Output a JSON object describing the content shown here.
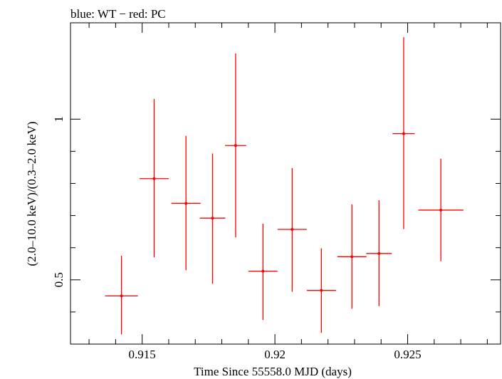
{
  "chart_data": {
    "type": "scatter",
    "title": "blue: WT − red: PC",
    "xlabel": "Time Since 55558.0 MJD (days)",
    "ylabel": "(2.0–10.0 keV)/(0.3–2.0 keV)",
    "xlim": [
      0.9123,
      0.9285
    ],
    "ylim": [
      0.3,
      1.3
    ],
    "x_ticks": [
      0.915,
      0.92,
      0.925
    ],
    "x_tick_labels": [
      "0.915",
      "0.92",
      "0.925"
    ],
    "y_ticks": [
      0.5,
      1
    ],
    "y_tick_labels": [
      "0.5",
      "1"
    ],
    "grid": false,
    "series": [
      {
        "name": "PC",
        "color": "#ff0000",
        "points": [
          {
            "x": 0.91422,
            "xerr": 0.00062,
            "y": 0.45,
            "ylo": 0.33,
            "yhi": 0.575
          },
          {
            "x": 0.91545,
            "xerr": 0.00055,
            "y": 0.815,
            "ylo": 0.57,
            "yhi": 1.063
          },
          {
            "x": 0.91665,
            "xerr": 0.00055,
            "y": 0.738,
            "ylo": 0.53,
            "yhi": 0.948
          },
          {
            "x": 0.91765,
            "xerr": 0.00048,
            "y": 0.692,
            "ylo": 0.488,
            "yhi": 0.893
          },
          {
            "x": 0.91852,
            "xerr": 0.0004,
            "y": 0.918,
            "ylo": 0.632,
            "yhi": 1.205
          },
          {
            "x": 0.91955,
            "xerr": 0.00055,
            "y": 0.527,
            "ylo": 0.375,
            "yhi": 0.675
          },
          {
            "x": 0.92065,
            "xerr": 0.00055,
            "y": 0.657,
            "ylo": 0.463,
            "yhi": 0.848
          },
          {
            "x": 0.92175,
            "xerr": 0.00055,
            "y": 0.467,
            "ylo": 0.335,
            "yhi": 0.598
          },
          {
            "x": 0.9229,
            "xerr": 0.00055,
            "y": 0.572,
            "ylo": 0.41,
            "yhi": 0.735
          },
          {
            "x": 0.92392,
            "xerr": 0.00048,
            "y": 0.582,
            "ylo": 0.418,
            "yhi": 0.748
          },
          {
            "x": 0.92485,
            "xerr": 0.00042,
            "y": 0.955,
            "ylo": 0.658,
            "yhi": 1.255
          },
          {
            "x": 0.92625,
            "xerr": 0.00085,
            "y": 0.717,
            "ylo": 0.558,
            "yhi": 0.877
          }
        ]
      }
    ]
  }
}
